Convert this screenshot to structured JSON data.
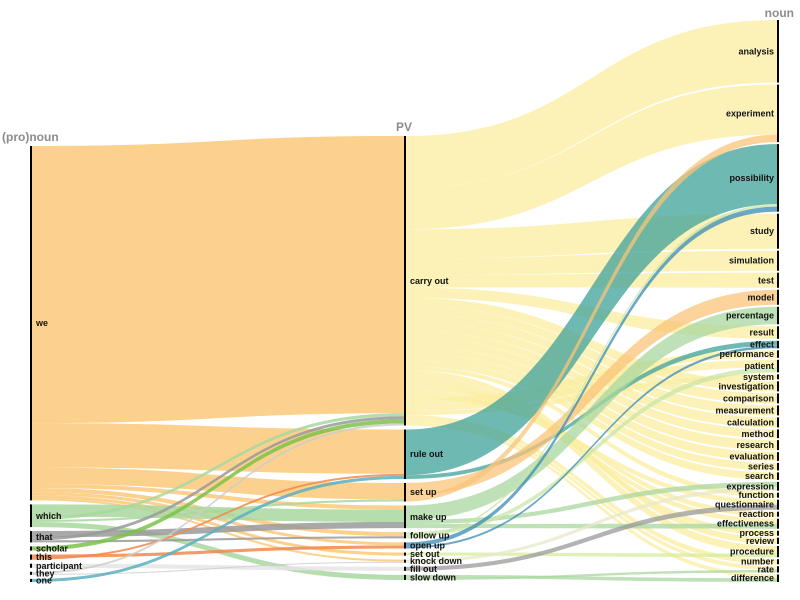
{
  "headers": {
    "left": "(pro)noun",
    "middle": "PV",
    "right": "noun"
  },
  "pronouns": [
    "we",
    "which",
    "that",
    "scholar",
    "this",
    "participant",
    "they",
    "one"
  ],
  "verbs": [
    "carry out",
    "rule out",
    "set up",
    "make up",
    "follow up",
    "open up",
    "set out",
    "knock down",
    "fill out",
    "slow down"
  ],
  "nouns": [
    "analysis",
    "experiment",
    "possibility",
    "study",
    "simulation",
    "test",
    "model",
    "percentage",
    "result",
    "effect",
    "performance",
    "patient",
    "system",
    "investigation",
    "comparison",
    "measurement",
    "calculation",
    "method",
    "research",
    "evaluation",
    "series",
    "search",
    "expression",
    "function",
    "questionnaire",
    "reaction",
    "effectiveness",
    "process",
    "review",
    "procedure",
    "number",
    "rate",
    "difference"
  ],
  "colors": {
    "we": "#fbc97a",
    "which": "#a9d79f",
    "that": "#9a9a9a",
    "scholar": "#7cc24a",
    "this": "#f08a4b",
    "participant": "#e5e5e5",
    "they": "#cccccc",
    "one": "#5ab0c0",
    "carry out": "#fbeea0",
    "rule out": "#3fa19a",
    "set up": "#f9c47a",
    "make up": "#a9d79f",
    "follow up": "#c9e6a8",
    "open up": "#3a8bb5",
    "set out": "#d6ee9a",
    "knock down": "#e8e8c8",
    "fill out": "#999999",
    "slow down": "#a9d79f"
  },
  "chart_data": {
    "type": "sankey",
    "left_to_middle": [
      {
        "source": "we",
        "target": "carry out",
        "value": 269
      },
      {
        "source": "we",
        "target": "rule out",
        "value": 43
      },
      {
        "source": "we",
        "target": "set up",
        "value": 16
      },
      {
        "source": "we",
        "target": "make up",
        "value": 4
      },
      {
        "source": "we",
        "target": "follow up",
        "value": 4
      },
      {
        "source": "we",
        "target": "open up",
        "value": 3
      },
      {
        "source": "we",
        "target": "set out",
        "value": 3
      },
      {
        "source": "we",
        "target": "knock down",
        "value": 2
      },
      {
        "source": "which",
        "target": "make up",
        "value": 12
      },
      {
        "source": "which",
        "target": "carry out",
        "value": 3
      },
      {
        "source": "which",
        "target": "set up",
        "value": 2
      },
      {
        "source": "which",
        "target": "slow down",
        "value": 5
      },
      {
        "source": "that",
        "target": "make up",
        "value": 6
      },
      {
        "source": "that",
        "target": "carry out",
        "value": 3
      },
      {
        "source": "that",
        "target": "follow up",
        "value": 2
      },
      {
        "source": "scholar",
        "target": "carry out",
        "value": 4
      },
      {
        "source": "this",
        "target": "open up",
        "value": 3
      },
      {
        "source": "this",
        "target": "rule out",
        "value": 2
      },
      {
        "source": "participant",
        "target": "fill out",
        "value": 4
      },
      {
        "source": "they",
        "target": "carry out",
        "value": 2
      },
      {
        "source": "they",
        "target": "knock down",
        "value": 1
      },
      {
        "source": "one",
        "target": "rule out",
        "value": 3
      }
    ],
    "middle_to_right": [
      {
        "source": "carry out",
        "target": "analysis",
        "value": 50
      },
      {
        "source": "carry out",
        "target": "experiment",
        "value": 40
      },
      {
        "source": "carry out",
        "target": "study",
        "value": 28
      },
      {
        "source": "carry out",
        "target": "simulation",
        "value": 16
      },
      {
        "source": "carry out",
        "target": "test",
        "value": 12
      },
      {
        "source": "carry out",
        "target": "result",
        "value": 10
      },
      {
        "source": "carry out",
        "target": "investigation",
        "value": 8
      },
      {
        "source": "carry out",
        "target": "comparison",
        "value": 8
      },
      {
        "source": "carry out",
        "target": "measurement",
        "value": 8
      },
      {
        "source": "carry out",
        "target": "calculation",
        "value": 8
      },
      {
        "source": "carry out",
        "target": "method",
        "value": 7
      },
      {
        "source": "carry out",
        "target": "research",
        "value": 8
      },
      {
        "source": "carry out",
        "target": "evaluation",
        "value": 7
      },
      {
        "source": "carry out",
        "target": "series",
        "value": 6
      },
      {
        "source": "carry out",
        "target": "search",
        "value": 6
      },
      {
        "source": "carry out",
        "target": "function",
        "value": 4
      },
      {
        "source": "carry out",
        "target": "review",
        "value": 5
      },
      {
        "source": "carry out",
        "target": "procedure",
        "value": 6
      },
      {
        "source": "carry out",
        "target": "process",
        "value": 4
      },
      {
        "source": "carry out",
        "target": "reaction",
        "value": 4
      },
      {
        "source": "carry out",
        "target": "effectiveness",
        "value": 4
      },
      {
        "source": "carry out",
        "target": "questionnaire",
        "value": 4
      },
      {
        "source": "carry out",
        "target": "performance",
        "value": 6
      },
      {
        "source": "carry out",
        "target": "patient",
        "value": 6
      },
      {
        "source": "carry out",
        "target": "system",
        "value": 4
      },
      {
        "source": "carry out",
        "target": "number",
        "value": 4
      },
      {
        "source": "carry out",
        "target": "rate",
        "value": 3
      },
      {
        "source": "carry out",
        "target": "difference",
        "value": 3
      },
      {
        "source": "rule out",
        "target": "possibility",
        "value": 48
      },
      {
        "source": "rule out",
        "target": "effect",
        "value": 4
      },
      {
        "source": "set up",
        "target": "model",
        "value": 12
      },
      {
        "source": "set up",
        "target": "experiment",
        "value": 6
      },
      {
        "source": "make up",
        "target": "percentage",
        "value": 14
      },
      {
        "source": "make up",
        "target": "expression",
        "value": 4
      },
      {
        "source": "make up",
        "target": "effectiveness",
        "value": 4
      },
      {
        "source": "follow up",
        "target": "patient",
        "value": 4
      },
      {
        "source": "follow up",
        "target": "possibility",
        "value": 2
      },
      {
        "source": "open up",
        "target": "possibility",
        "value": 4
      },
      {
        "source": "open up",
        "target": "effect",
        "value": 2
      },
      {
        "source": "set out",
        "target": "procedure",
        "value": 3
      },
      {
        "source": "knock down",
        "target": "expression",
        "value": 3
      },
      {
        "source": "fill out",
        "target": "questionnaire",
        "value": 4
      },
      {
        "source": "slow down",
        "target": "difference",
        "value": 3
      },
      {
        "source": "slow down",
        "target": "rate",
        "value": 2
      }
    ]
  }
}
